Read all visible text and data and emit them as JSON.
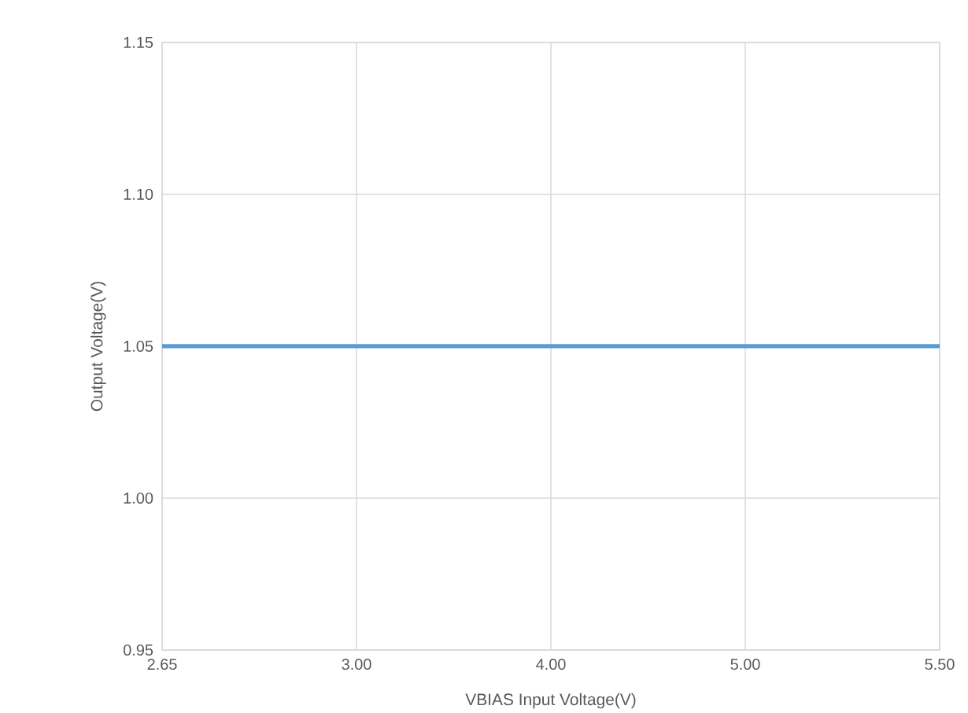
{
  "chart_data": {
    "type": "line",
    "xlabel": "VBIAS Input Voltage(V)",
    "ylabel": "Output Voltage(V)",
    "categories": [
      "2.65",
      "3.00",
      "4.00",
      "5.00",
      "5.50"
    ],
    "series": [
      {
        "color": "#5b9bd5",
        "values": [
          1.05,
          1.05,
          1.05,
          1.05,
          1.05
        ]
      }
    ],
    "ylim": [
      0.95,
      1.15
    ],
    "yticks": [
      {
        "value": 0.95,
        "label": "0.95"
      },
      {
        "value": 1.0,
        "label": "1.00"
      },
      {
        "value": 1.05,
        "label": "1.05"
      },
      {
        "value": 1.1,
        "label": "1.10"
      },
      {
        "value": 1.15,
        "label": "1.15"
      }
    ],
    "grid": true,
    "marker": "none",
    "line_style": "solid"
  }
}
